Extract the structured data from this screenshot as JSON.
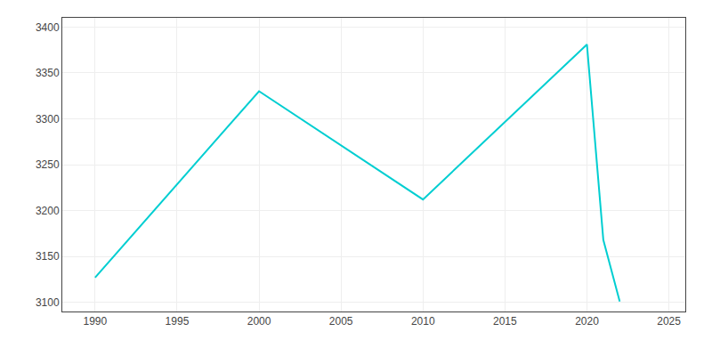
{
  "chart_data": {
    "type": "line",
    "x": [
      1990,
      2000,
      2010,
      2020,
      2021,
      2022
    ],
    "values": [
      3127,
      3330,
      3212,
      3381,
      3168,
      3101
    ],
    "color": "#00CED1",
    "xlim": [
      1988,
      2026
    ],
    "ylim": [
      3090,
      3410
    ],
    "xticks": [
      1990,
      1995,
      2000,
      2005,
      2010,
      2015,
      2020,
      2025
    ],
    "yticks": [
      3100,
      3150,
      3200,
      3250,
      3300,
      3350,
      3400
    ],
    "grid": true
  }
}
